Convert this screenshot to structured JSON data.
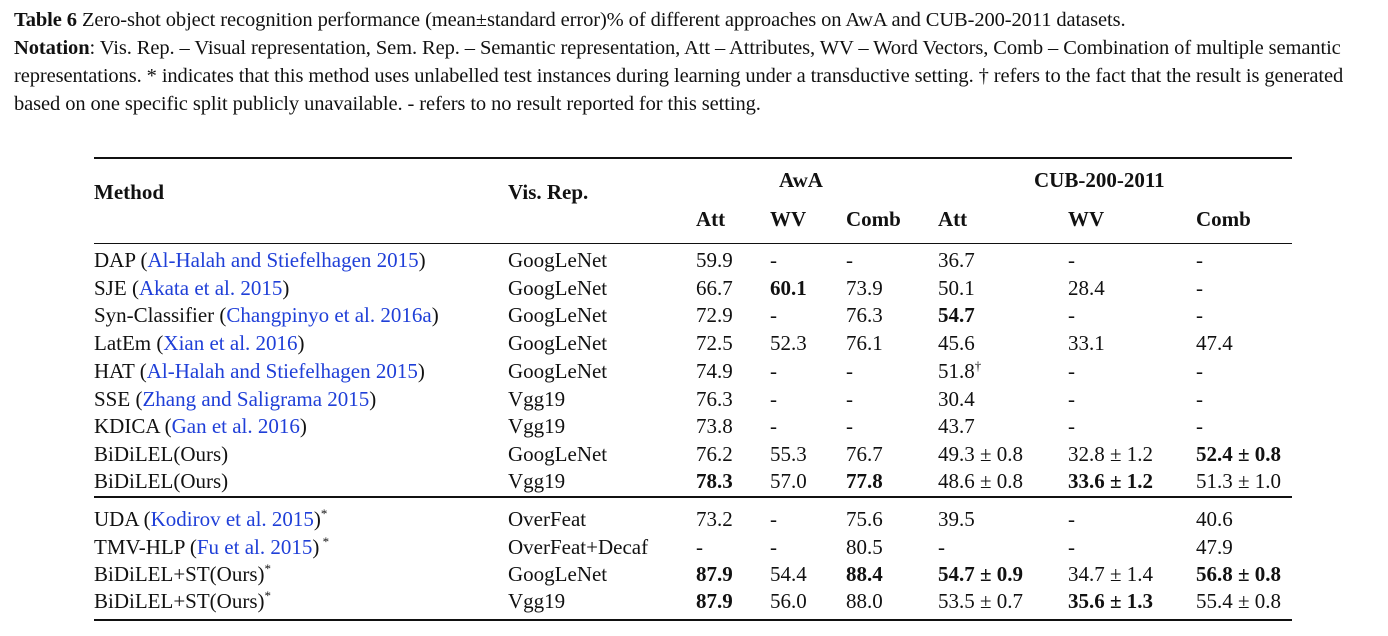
{
  "caption": {
    "label": "Table 6",
    "title": "Zero-shot object recognition performance (mean±standard error)% of different approaches on AwA and CUB-200-2011 datasets.",
    "notation_label": "Notation",
    "notation_text": ": Vis. Rep. – Visual representation, Sem. Rep. – Semantic representation, Att – Attributes, WV – Word Vectors, Comb – Combination of multiple semantic representations. * indicates that this method uses unlabelled test instances during learning under a transductive setting. † refers to the fact that the result is generated based on one specific split publicly unavailable. - refers to no result reported for this setting."
  },
  "table": {
    "header": {
      "method": "Method",
      "vis_rep": "Vis. Rep.",
      "awa": "AwA",
      "cub": "CUB-200-2011",
      "sub": [
        "Att",
        "WV",
        "Comb",
        "Att",
        "WV",
        "Comb"
      ]
    },
    "rows": [
      {
        "name": "DAP",
        "cite": "Al-Halah and Stiefelhagen 2015",
        "suffix": "",
        "vis": "GoogLeNet",
        "cells": [
          {
            "v": "59.9"
          },
          {
            "v": "-"
          },
          {
            "v": "-"
          },
          {
            "v": "36.7"
          },
          {
            "v": "-"
          },
          {
            "v": "-"
          }
        ]
      },
      {
        "name": "SJE",
        "cite": "Akata et al. 2015",
        "suffix": "",
        "vis": "GoogLeNet",
        "cells": [
          {
            "v": "66.7"
          },
          {
            "v": "60.1",
            "bold": true
          },
          {
            "v": "73.9"
          },
          {
            "v": "50.1"
          },
          {
            "v": "28.4"
          },
          {
            "v": "-"
          }
        ]
      },
      {
        "name": "Syn-Classifier",
        "cite": "Changpinyo et al. 2016a",
        "suffix": "",
        "vis": "GoogLeNet",
        "cells": [
          {
            "v": "72.9"
          },
          {
            "v": "-"
          },
          {
            "v": "76.3"
          },
          {
            "v": "54.7",
            "bold": true
          },
          {
            "v": "-"
          },
          {
            "v": "-"
          }
        ]
      },
      {
        "name": "LatEm",
        "cite": "Xian et al. 2016",
        "suffix": "",
        "vis": "GoogLeNet",
        "cells": [
          {
            "v": "72.5"
          },
          {
            "v": "52.3"
          },
          {
            "v": "76.1"
          },
          {
            "v": "45.6"
          },
          {
            "v": "33.1"
          },
          {
            "v": "47.4"
          }
        ]
      },
      {
        "name": "HAT",
        "cite": "Al-Halah and Stiefelhagen 2015",
        "suffix": "",
        "vis": "GoogLeNet",
        "cells": [
          {
            "v": "74.9"
          },
          {
            "v": "-"
          },
          {
            "v": "-"
          },
          {
            "v": "51.8",
            "sup": "†"
          },
          {
            "v": "-"
          },
          {
            "v": "-"
          }
        ]
      },
      {
        "name": "SSE",
        "cite": "Zhang and Saligrama 2015",
        "suffix": "",
        "vis": "Vgg19",
        "cells": [
          {
            "v": "76.3"
          },
          {
            "v": "-"
          },
          {
            "v": "-"
          },
          {
            "v": "30.4"
          },
          {
            "v": "-"
          },
          {
            "v": "-"
          }
        ]
      },
      {
        "name": "KDICA",
        "cite": "Gan et al. 2016",
        "suffix": "",
        "vis": "Vgg19",
        "cells": [
          {
            "v": "73.8"
          },
          {
            "v": "-"
          },
          {
            "v": "-"
          },
          {
            "v": "43.7"
          },
          {
            "v": "-"
          },
          {
            "v": "-"
          }
        ]
      },
      {
        "name": "BiDiLEL(Ours)",
        "cite": "",
        "suffix": "",
        "vis": "GoogLeNet",
        "cells": [
          {
            "v": "76.2"
          },
          {
            "v": "55.3"
          },
          {
            "v": "76.7"
          },
          {
            "v": "49.3 ± 0.8"
          },
          {
            "v": "32.8 ± 1.2"
          },
          {
            "v": "52.4 ± 0.8",
            "bold": true
          }
        ]
      },
      {
        "name": "BiDiLEL(Ours)",
        "cite": "",
        "suffix": "",
        "vis": "Vgg19",
        "cells": [
          {
            "v": "78.3",
            "bold": true
          },
          {
            "v": "57.0"
          },
          {
            "v": "77.8",
            "bold": true
          },
          {
            "v": "48.6 ± 0.8"
          },
          {
            "v": "33.6 ± 1.2",
            "bold": true
          },
          {
            "v": "51.3 ± 1.0"
          }
        ]
      },
      {
        "name": "UDA",
        "cite": "Kodirov et al. 2015",
        "suffix": "*",
        "vis": "OverFeat",
        "cells": [
          {
            "v": "73.2"
          },
          {
            "v": "-"
          },
          {
            "v": "75.6"
          },
          {
            "v": "39.5"
          },
          {
            "v": "-"
          },
          {
            "v": "40.6"
          }
        ]
      },
      {
        "name": "TMV-HLP",
        "cite": "Fu et al. 2015",
        "suffix": " *",
        "vis": "OverFeat+Decaf",
        "cells": [
          {
            "v": "-"
          },
          {
            "v": "-"
          },
          {
            "v": "80.5"
          },
          {
            "v": "-"
          },
          {
            "v": "-"
          },
          {
            "v": "47.9"
          }
        ]
      },
      {
        "name": "BiDiLEL+ST(Ours)",
        "cite": "",
        "suffix": "*",
        "vis": "GoogLeNet",
        "cells": [
          {
            "v": "87.9",
            "bold": true
          },
          {
            "v": "54.4"
          },
          {
            "v": "88.4",
            "bold": true
          },
          {
            "v": "54.7 ± 0.9",
            "bold": true
          },
          {
            "v": "34.7 ± 1.4"
          },
          {
            "v": "56.8 ± 0.8",
            "bold": true
          }
        ]
      },
      {
        "name": "BiDiLEL+ST(Ours)",
        "cite": "",
        "suffix": "*",
        "vis": "Vgg19",
        "cells": [
          {
            "v": "87.9",
            "bold": true
          },
          {
            "v": "56.0"
          },
          {
            "v": "88.0"
          },
          {
            "v": "53.5 ± 0.7"
          },
          {
            "v": "35.6 ± 1.3",
            "bold": true
          },
          {
            "v": "55.4 ± 0.8"
          }
        ]
      }
    ]
  }
}
